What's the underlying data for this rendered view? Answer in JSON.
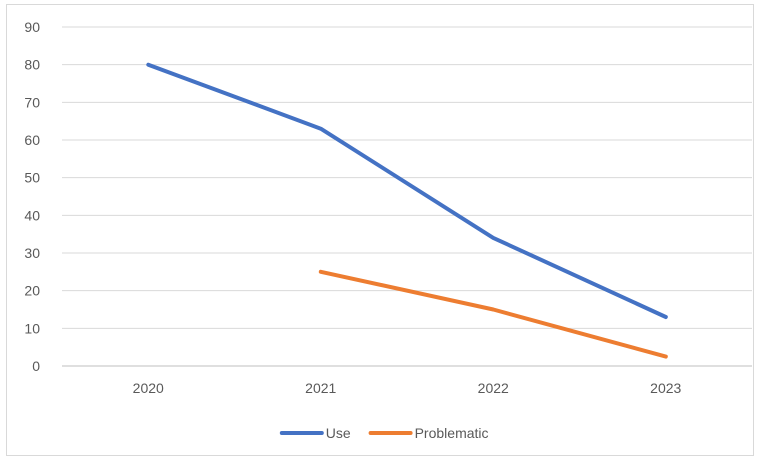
{
  "chart_data": {
    "type": "line",
    "categories": [
      "2020",
      "2021",
      "2022",
      "2023"
    ],
    "series": [
      {
        "name": "Use",
        "color": "#4472c4",
        "values": [
          80,
          63,
          34,
          13
        ]
      },
      {
        "name": "Problematic",
        "color": "#ed7d31",
        "values": [
          null,
          25,
          15,
          2.5
        ]
      }
    ],
    "y_ticks": [
      "0",
      "10",
      "20",
      "30",
      "40",
      "50",
      "60",
      "70",
      "80",
      "90"
    ],
    "ylim": [
      0,
      90
    ],
    "grid": "horizontal",
    "legend_position": "bottom",
    "title": "",
    "xlabel": "",
    "ylabel": ""
  }
}
